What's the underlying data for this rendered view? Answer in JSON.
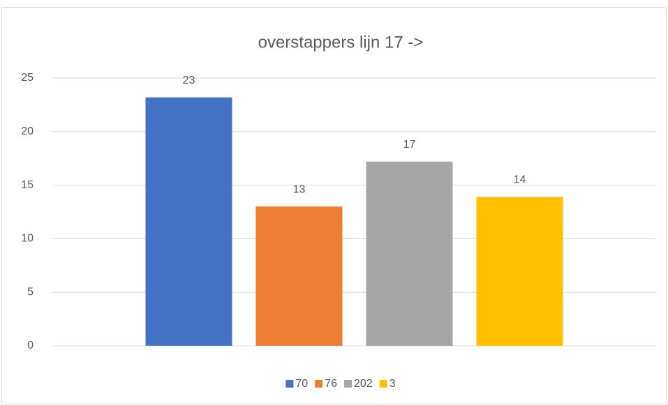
{
  "chart_data": {
    "type": "bar",
    "title": "overstappers lijn 17 ->",
    "categories": [
      null
    ],
    "series": [
      {
        "name": "70",
        "color": "#4472c4",
        "values": [
          23.2
        ],
        "value_labels": [
          "23"
        ]
      },
      {
        "name": "76",
        "color": "#ed7d31",
        "values": [
          13
        ],
        "value_labels": [
          "13"
        ]
      },
      {
        "name": "202",
        "color": "#a5a5a5",
        "values": [
          17.2
        ],
        "value_labels": [
          "17"
        ]
      },
      {
        "name": "3",
        "color": "#ffc000",
        "values": [
          13.9
        ],
        "value_labels": [
          "14"
        ]
      }
    ],
    "ylim": [
      0,
      25
    ],
    "yticks": [
      0,
      5,
      10,
      15,
      20,
      25
    ],
    "grid": true,
    "legend": "bottom"
  }
}
